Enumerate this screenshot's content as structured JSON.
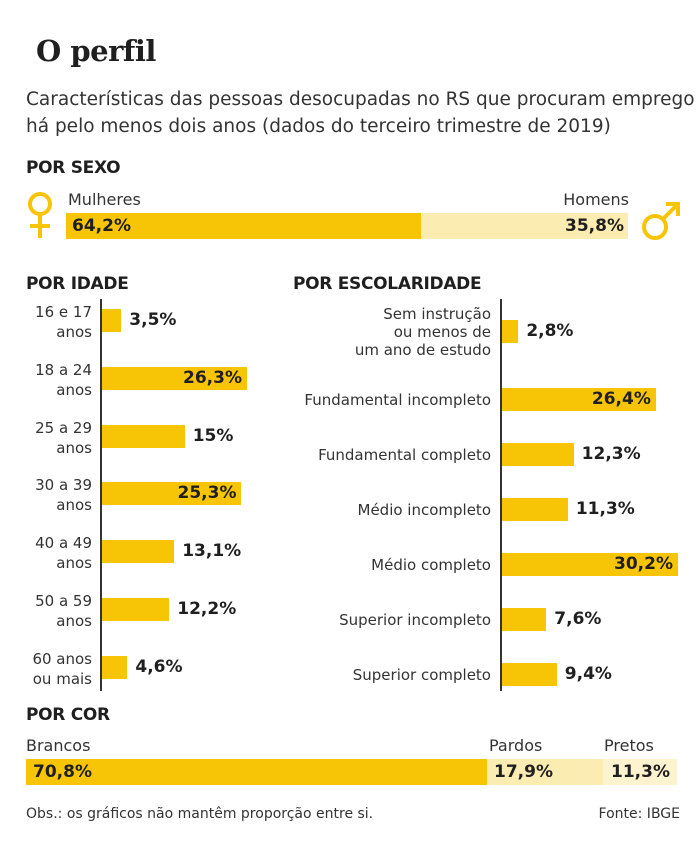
{
  "title": "O perfil",
  "subtitle": "Características das pessoas desocupadas no RS que procuram emprego há pelo menos dois anos (dados do terceiro trimestre de 2019)",
  "icons": {
    "female": "female-symbol-icon",
    "male": "male-symbol-icon"
  },
  "colors": {
    "bar": "#f8c406",
    "bar_light": "#fbecb2",
    "axis": "#333333"
  },
  "note": "Obs.: os gráficos não mantêm proporção entre si.",
  "source": "Fonte: IBGE",
  "chart_data": [
    {
      "id": "sexo",
      "type": "bar",
      "orientation": "stacked-horizontal",
      "title": "POR SEXO",
      "categories": [
        "Mulheres",
        "Homens"
      ],
      "values": [
        64.2,
        35.8
      ],
      "labels": [
        "64,2%",
        "35,8%"
      ],
      "unit": "%"
    },
    {
      "id": "idade",
      "type": "bar",
      "orientation": "horizontal",
      "title": "POR IDADE",
      "categories": [
        "16 e 17 anos",
        "18 a 24 anos",
        "25 a 29 anos",
        "30 a 39 anos",
        "40 a 49 anos",
        "50 a 59 anos",
        "60 anos ou mais"
      ],
      "category_lines": [
        [
          "16 e 17",
          "anos"
        ],
        [
          "18 a 24",
          "anos"
        ],
        [
          "25 a 29",
          "anos"
        ],
        [
          "30 a 39",
          "anos"
        ],
        [
          "40 a 49",
          "anos"
        ],
        [
          "50 a 59",
          "anos"
        ],
        [
          "60 anos",
          "ou mais"
        ]
      ],
      "values": [
        3.5,
        26.3,
        15,
        25.3,
        13.1,
        12.2,
        4.6
      ],
      "labels": [
        "3,5%",
        "26,3%",
        "15%",
        "25,3%",
        "13,1%",
        "12,2%",
        "4,6%"
      ],
      "unit": "%"
    },
    {
      "id": "escolaridade",
      "type": "bar",
      "orientation": "horizontal",
      "title": "POR ESCOLARIDADE",
      "categories": [
        "Sem instrução ou menos de um ano de estudo",
        "Fundamental incompleto",
        "Fundamental completo",
        "Médio incompleto",
        "Médio completo",
        "Superior incompleto",
        "Superior completo"
      ],
      "category_lines": [
        [
          "Sem instrução",
          "ou menos de",
          "um ano de estudo"
        ],
        [
          "Fundamental incompleto"
        ],
        [
          "Fundamental completo"
        ],
        [
          "Médio incompleto"
        ],
        [
          "Médio completo"
        ],
        [
          "Superior incompleto"
        ],
        [
          "Superior completo"
        ]
      ],
      "values": [
        2.8,
        26.4,
        12.3,
        11.3,
        30.2,
        7.6,
        9.4
      ],
      "labels": [
        "2,8%",
        "26,4%",
        "12,3%",
        "11,3%",
        "30,2%",
        "7,6%",
        "9,4%"
      ],
      "unit": "%"
    },
    {
      "id": "cor",
      "type": "bar",
      "orientation": "stacked-horizontal",
      "title": "POR COR",
      "categories": [
        "Brancos",
        "Pardos",
        "Pretos"
      ],
      "values": [
        70.8,
        17.9,
        11.3
      ],
      "labels": [
        "70,8%",
        "17,9%",
        "11,3%"
      ],
      "unit": "%"
    }
  ]
}
